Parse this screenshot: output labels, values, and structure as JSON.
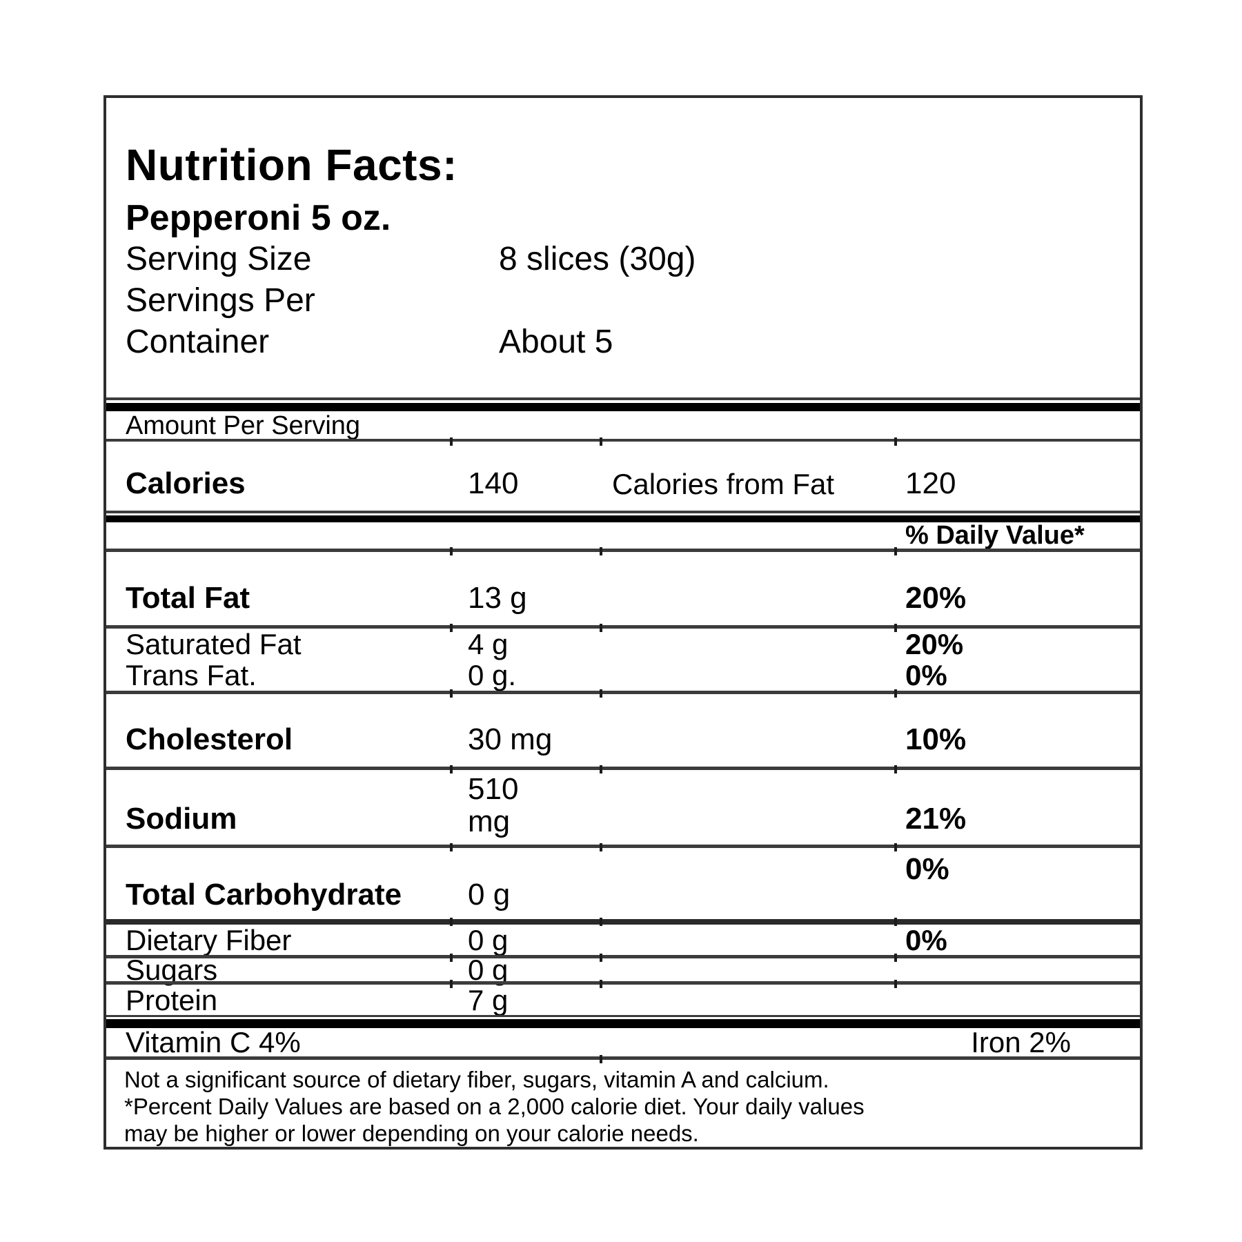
{
  "colors": {
    "text": "#000000",
    "border": "#2e2e2e",
    "thin_line": "#3c3c3c",
    "thick_bar": "#000000",
    "background": "#ffffff"
  },
  "header": {
    "title": "Nutrition Facts:",
    "product": "Pepperoni 5 oz.",
    "rows": [
      {
        "label": "Serving Size",
        "value": "8 slices (30g)"
      },
      {
        "label": "Servings Per",
        "value": ""
      },
      {
        "label": "Container",
        "value": "About 5"
      }
    ]
  },
  "amount_per_serving": "Amount Per Serving",
  "calories": {
    "label": "Calories",
    "value": "140",
    "from_fat_label": "Calories from Fat",
    "from_fat_value": "120"
  },
  "daily_value_header": "% Daily Value*",
  "nutrients": {
    "total_fat": {
      "label": "Total Fat",
      "amount": "13 g",
      "daily_value": "20%"
    },
    "saturated_fat": {
      "label": "Saturated Fat",
      "amount": "4 g",
      "daily_value": "20%"
    },
    "trans_fat": {
      "label": "Trans Fat.",
      "amount": "0 g.",
      "daily_value": "0%"
    },
    "cholesterol": {
      "label": "Cholesterol",
      "amount": "30 mg",
      "daily_value": "10%"
    },
    "sodium": {
      "label": "Sodium",
      "amount_line1": "510",
      "amount_line2": "mg",
      "daily_value": "21%"
    },
    "total_carbohydrate": {
      "label": "Total Carbohydrate",
      "amount": "0 g",
      "daily_value": "0%"
    },
    "dietary_fiber": {
      "label": "Dietary Fiber",
      "amount": "0 g",
      "daily_value": "0%"
    },
    "sugars": {
      "label": "Sugars",
      "amount": "0 g"
    },
    "protein": {
      "label": "Protein",
      "amount": "7 g"
    }
  },
  "micronutrients": {
    "vitamin_c": "Vitamin C 4%",
    "iron": "Iron 2%"
  },
  "footnote_lines": [
    "Not a significant source of dietary fiber, sugars, vitamin A and calcium.",
    "*Percent Daily Values are based on a 2,000 calorie diet. Your daily values",
    "may be higher or lower depending on your calorie needs."
  ]
}
